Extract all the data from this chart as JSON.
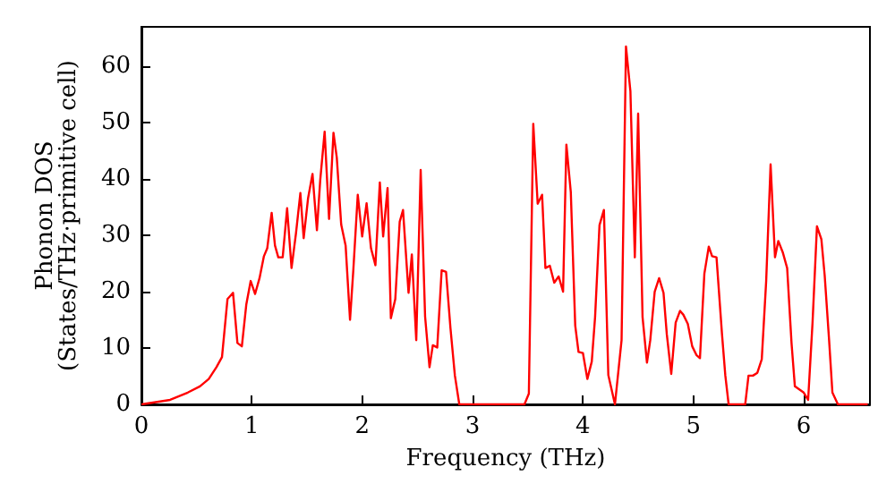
{
  "chart_data": {
    "type": "line",
    "xlabel": "Frequency (THz)",
    "ylabel": "Phonon DOS\n(States/THz·primitive cell)",
    "xlim": [
      0,
      6.6
    ],
    "ylim": [
      0,
      67
    ],
    "xticks": [
      0,
      1,
      2,
      3,
      4,
      5,
      6
    ],
    "yticks": [
      0,
      10,
      20,
      30,
      40,
      50,
      60
    ],
    "grid": false,
    "marker": "none",
    "line_style": "solid",
    "series": [
      {
        "color": "#ff0000",
        "x": [
          0,
          0.26,
          0.42,
          0.53,
          0.61,
          0.68,
          0.73,
          0.78,
          0.83,
          0.87,
          0.91,
          0.95,
          0.99,
          1.03,
          1.07,
          1.11,
          1.14,
          1.18,
          1.21,
          1.24,
          1.28,
          1.32,
          1.36,
          1.4,
          1.44,
          1.47,
          1.51,
          1.55,
          1.59,
          1.62,
          1.66,
          1.7,
          1.74,
          1.77,
          1.81,
          1.85,
          1.89,
          1.92,
          1.96,
          2.0,
          2.04,
          2.08,
          2.12,
          2.16,
          2.19,
          2.23,
          2.26,
          2.3,
          2.34,
          2.37,
          2.42,
          2.45,
          2.49,
          2.53,
          2.57,
          2.61,
          2.64,
          2.68,
          2.72,
          2.76,
          2.8,
          2.84,
          2.88,
          3.47,
          3.51,
          3.55,
          3.59,
          3.63,
          3.66,
          3.7,
          3.74,
          3.78,
          3.82,
          3.85,
          3.89,
          3.93,
          3.96,
          4.0,
          4.04,
          4.08,
          4.11,
          4.15,
          4.19,
          4.23,
          4.29,
          4.35,
          4.39,
          4.43,
          4.47,
          4.5,
          4.54,
          4.58,
          4.61,
          4.65,
          4.69,
          4.73,
          4.76,
          4.8,
          4.84,
          4.88,
          4.91,
          4.95,
          4.99,
          5.03,
          5.06,
          5.1,
          5.14,
          5.17,
          5.21,
          5.26,
          5.29,
          5.32,
          5.47,
          5.5,
          5.54,
          5.58,
          5.62,
          5.66,
          5.7,
          5.74,
          5.77,
          5.81,
          5.85,
          5.89,
          5.92,
          6.0,
          6.04,
          6.08,
          6.12,
          6.16,
          6.19,
          6.23,
          6.26,
          6.31,
          6.58
        ],
        "values": [
          0,
          0.8,
          2.1,
          3.2,
          4.5,
          6.6,
          8.4,
          18.7,
          19.8,
          10.9,
          10.3,
          17.7,
          21.9,
          19.6,
          22.4,
          26.3,
          27.7,
          34,
          28.2,
          26.1,
          26.1,
          34.8,
          24.2,
          30.3,
          37.5,
          29.5,
          36.6,
          40.9,
          30.9,
          39.8,
          48.4,
          32.9,
          48.2,
          43.8,
          31.9,
          28.2,
          15,
          23.9,
          37.2,
          29.8,
          35.7,
          27.7,
          24.7,
          39.4,
          29.8,
          38.4,
          15.3,
          18.7,
          32.4,
          34.5,
          19.8,
          26.6,
          11.4,
          41.6,
          15.6,
          6.6,
          10.5,
          10.1,
          23.8,
          23.5,
          13.5,
          5.1,
          0,
          0,
          1.9,
          49.8,
          35.6,
          37.2,
          24.2,
          24.6,
          21.6,
          22.7,
          20,
          46.1,
          37.7,
          14,
          9.3,
          9.1,
          4.5,
          7.6,
          15.5,
          31.8,
          34.5,
          5.2,
          0,
          11.4,
          63.5,
          55.6,
          26.1,
          51.6,
          15.5,
          7.4,
          11.4,
          20,
          22.4,
          19.8,
          12.4,
          5.4,
          14.5,
          16.6,
          15.9,
          14.3,
          10.3,
          8.7,
          8.2,
          23.2,
          28,
          26.3,
          26.1,
          12.4,
          5.1,
          0,
          0,
          5.1,
          5.1,
          5.6,
          8,
          21.9,
          42.6,
          26.1,
          29,
          27,
          24.2,
          10.8,
          3.2,
          2.1,
          0.8,
          14.5,
          31.6,
          29.3,
          22.9,
          11.4,
          2.1,
          0,
          0
        ]
      }
    ]
  }
}
